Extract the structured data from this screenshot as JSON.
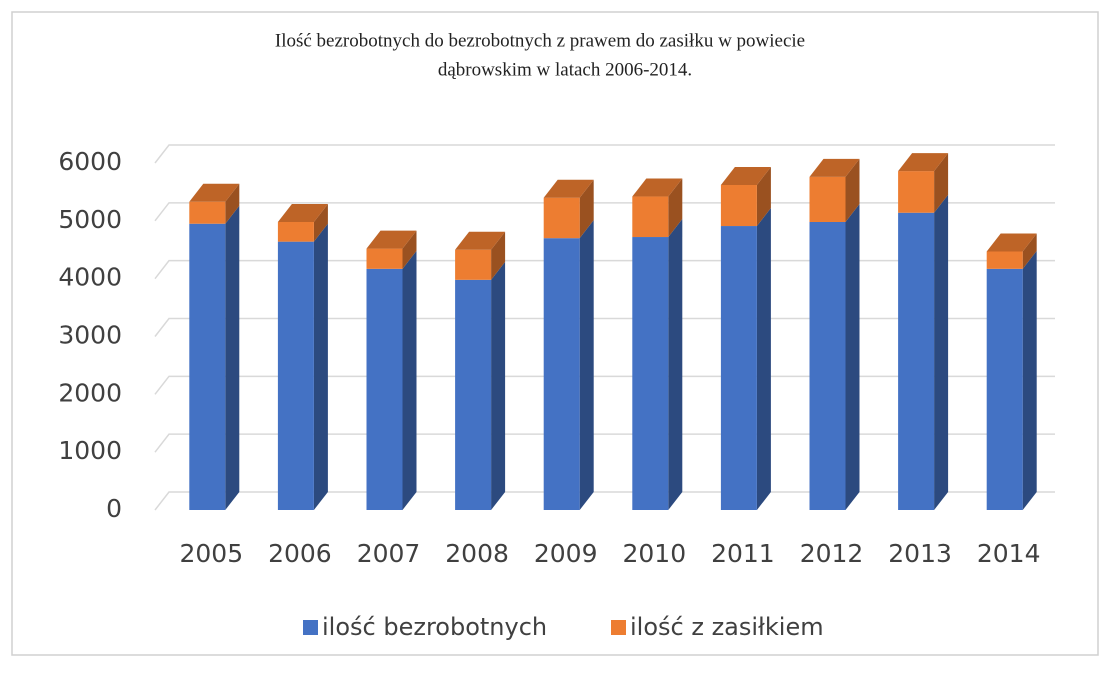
{
  "chart_data": {
    "type": "bar3d_stacked",
    "title": [
      "Ilość bezrobotnych do bezrobotnych z prawem do zasiłku w powiecie",
      "dąbrowskim w latach 2006-2014."
    ],
    "categories": [
      "2005",
      "2006",
      "2007",
      "2008",
      "2009",
      "2010",
      "2011",
      "2012",
      "2013",
      "2014"
    ],
    "series": [
      {
        "name": "ilość bezrobotnych",
        "color": "#4472c4",
        "values": [
          4950,
          4640,
          4170,
          3980,
          4700,
          4720,
          4910,
          4980,
          5140,
          4170
        ]
      },
      {
        "name": "ilość z zasiłkiem",
        "color": "#ed7d31",
        "values": [
          380,
          340,
          350,
          520,
          700,
          700,
          710,
          780,
          720,
          300
        ]
      }
    ],
    "ylim": [
      0,
      6000
    ],
    "yticks": [
      0,
      1000,
      2000,
      3000,
      4000,
      5000,
      6000
    ],
    "grid": true,
    "legend": "bottom"
  }
}
